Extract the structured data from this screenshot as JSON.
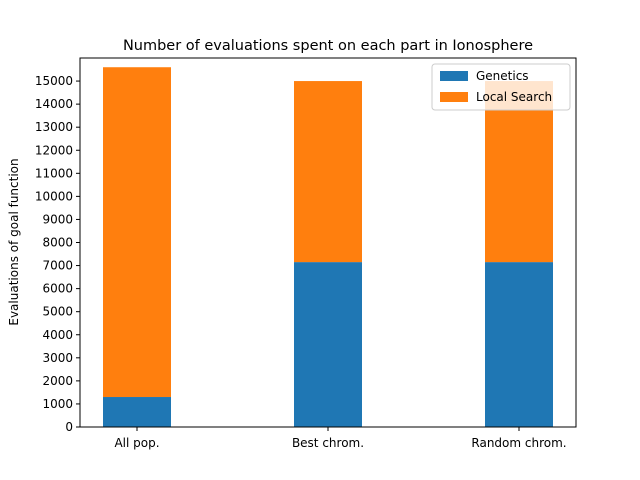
{
  "chart_data": {
    "type": "bar",
    "stacked": true,
    "title": "Number of evaluations spent on each part in Ionosphere",
    "xlabel": "",
    "ylabel": "Evaluations of goal function",
    "categories": [
      "All pop.",
      "Best chrom.",
      "Random chrom."
    ],
    "series": [
      {
        "name": "Genetics",
        "color": "#1f77b4",
        "values": [
          1300,
          7150,
          7150
        ]
      },
      {
        "name": "Local Search",
        "color": "#ff7f0e",
        "values": [
          14300,
          7850,
          7850
        ]
      }
    ],
    "ylim": [
      0,
      16000
    ],
    "yticks": [
      0,
      1000,
      2000,
      3000,
      4000,
      5000,
      6000,
      7000,
      8000,
      9000,
      10000,
      11000,
      12000,
      13000,
      14000,
      15000
    ],
    "grid": false,
    "legend_position": "top-right"
  }
}
